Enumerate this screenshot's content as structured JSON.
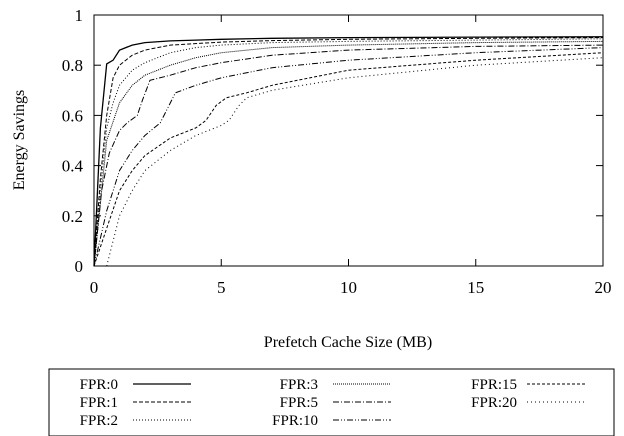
{
  "chart_data": {
    "type": "line",
    "title": "",
    "xlabel": "Prefetch Cache Size (MB)",
    "ylabel": "Energy Savings",
    "xlim": [
      0,
      20
    ],
    "ylim": [
      0,
      1
    ],
    "xticks": [
      "0",
      "5",
      "10",
      "15",
      "20"
    ],
    "yticks": [
      "0",
      "0.2",
      "0.4",
      "0.6",
      "0.8",
      "1"
    ],
    "grid": false,
    "legend_position": "bottom",
    "series": [
      {
        "name": "FPR:0",
        "dash": "none",
        "points": [
          [
            0,
            0
          ],
          [
            0.25,
            0.55
          ],
          [
            0.5,
            0.805
          ],
          [
            0.75,
            0.82
          ],
          [
            1,
            0.86
          ],
          [
            1.5,
            0.88
          ],
          [
            2,
            0.89
          ],
          [
            3,
            0.897
          ],
          [
            4,
            0.9
          ],
          [
            5,
            0.903
          ],
          [
            7,
            0.907
          ],
          [
            10,
            0.91
          ],
          [
            15,
            0.912
          ],
          [
            20,
            0.913
          ]
        ]
      },
      {
        "name": "FPR:1",
        "dash": "4,2",
        "points": [
          [
            0,
            0
          ],
          [
            0.25,
            0.35
          ],
          [
            0.5,
            0.6
          ],
          [
            0.75,
            0.75
          ],
          [
            1,
            0.8
          ],
          [
            1.5,
            0.84
          ],
          [
            2,
            0.86
          ],
          [
            3,
            0.88
          ],
          [
            5,
            0.892
          ],
          [
            7,
            0.898
          ],
          [
            10,
            0.903
          ],
          [
            15,
            0.907
          ],
          [
            20,
            0.91
          ]
        ]
      },
      {
        "name": "FPR:2",
        "dash": "1,2",
        "points": [
          [
            0,
            0
          ],
          [
            0.25,
            0.3
          ],
          [
            0.5,
            0.55
          ],
          [
            0.75,
            0.65
          ],
          [
            1,
            0.72
          ],
          [
            1.5,
            0.78
          ],
          [
            2,
            0.81
          ],
          [
            3,
            0.85
          ],
          [
            4,
            0.87
          ],
          [
            5,
            0.88
          ],
          [
            7,
            0.89
          ],
          [
            10,
            0.895
          ],
          [
            15,
            0.9
          ],
          [
            20,
            0.905
          ]
        ]
      },
      {
        "name": "FPR:3",
        "dash": "1,1",
        "points": [
          [
            0,
            0
          ],
          [
            0.25,
            0.25
          ],
          [
            0.5,
            0.5
          ],
          [
            1,
            0.65
          ],
          [
            1.5,
            0.72
          ],
          [
            2,
            0.76
          ],
          [
            3,
            0.8
          ],
          [
            4,
            0.83
          ],
          [
            5,
            0.85
          ],
          [
            7,
            0.87
          ],
          [
            10,
            0.88
          ],
          [
            15,
            0.89
          ],
          [
            20,
            0.895
          ]
        ]
      },
      {
        "name": "FPR:5",
        "dash": "6,2,1,2",
        "points": [
          [
            0,
            0
          ],
          [
            0.3,
            0.3
          ],
          [
            0.6,
            0.45
          ],
          [
            1,
            0.54
          ],
          [
            1.3,
            0.57
          ],
          [
            1.7,
            0.6
          ],
          [
            1.9,
            0.66
          ],
          [
            2.2,
            0.74
          ],
          [
            3,
            0.76
          ],
          [
            4,
            0.79
          ],
          [
            5,
            0.81
          ],
          [
            7,
            0.84
          ],
          [
            10,
            0.86
          ],
          [
            15,
            0.875
          ],
          [
            20,
            0.88
          ]
        ]
      },
      {
        "name": "FPR:10",
        "dash": "6,2,1,2,1,2",
        "points": [
          [
            0,
            0
          ],
          [
            0.5,
            0.22
          ],
          [
            1,
            0.38
          ],
          [
            1.5,
            0.46
          ],
          [
            2,
            0.52
          ],
          [
            2.6,
            0.57
          ],
          [
            2.9,
            0.63
          ],
          [
            3.2,
            0.69
          ],
          [
            4,
            0.72
          ],
          [
            5,
            0.75
          ],
          [
            7,
            0.79
          ],
          [
            10,
            0.82
          ],
          [
            15,
            0.85
          ],
          [
            20,
            0.87
          ]
        ]
      },
      {
        "name": "FPR:15",
        "dash": "3,2",
        "points": [
          [
            0,
            0
          ],
          [
            0.5,
            0.15
          ],
          [
            1,
            0.3
          ],
          [
            1.5,
            0.38
          ],
          [
            2,
            0.44
          ],
          [
            3,
            0.51
          ],
          [
            4,
            0.55
          ],
          [
            4.4,
            0.58
          ],
          [
            4.8,
            0.64
          ],
          [
            5.2,
            0.67
          ],
          [
            6,
            0.69
          ],
          [
            7,
            0.72
          ],
          [
            10,
            0.78
          ],
          [
            15,
            0.82
          ],
          [
            20,
            0.85
          ]
        ]
      },
      {
        "name": "FPR:20",
        "dash": "1,3",
        "points": [
          [
            0.5,
            0
          ],
          [
            0.8,
            0.12
          ],
          [
            1,
            0.2
          ],
          [
            1.5,
            0.3
          ],
          [
            2,
            0.38
          ],
          [
            3,
            0.46
          ],
          [
            4,
            0.52
          ],
          [
            5,
            0.56
          ],
          [
            5.3,
            0.58
          ],
          [
            5.7,
            0.64
          ],
          [
            6,
            0.67
          ],
          [
            7,
            0.7
          ],
          [
            10,
            0.75
          ],
          [
            15,
            0.8
          ],
          [
            20,
            0.83
          ]
        ]
      }
    ]
  }
}
